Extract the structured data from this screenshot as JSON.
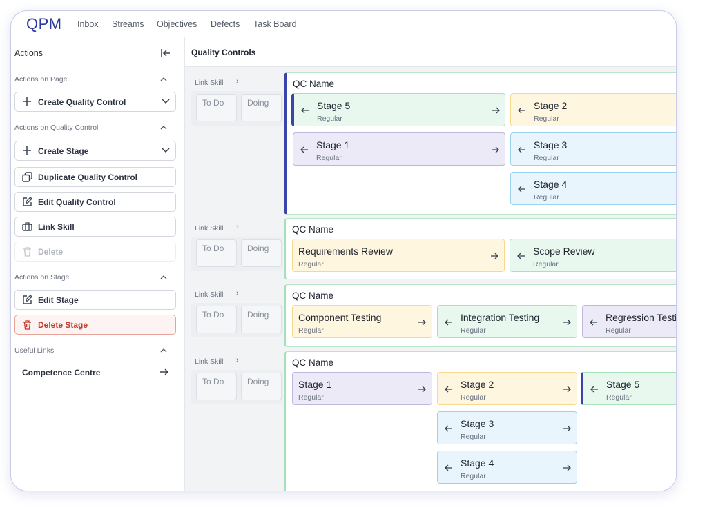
{
  "nav": {
    "logo": "QPM",
    "items": [
      "Inbox",
      "Streams",
      "Objectives",
      "Defects",
      "Task Board"
    ]
  },
  "sidebar": {
    "title": "Actions",
    "sections": [
      {
        "title": "Actions on Page",
        "actions": [
          "Create Quality Control"
        ]
      },
      {
        "title": "Actions on Quality Control",
        "actions": [
          "Create Stage",
          "Duplicate Quality Control",
          "Edit Quality Control",
          "Link Skill",
          "Delete"
        ]
      },
      {
        "title": "Actions on Stage",
        "actions": [
          "Edit Stage",
          "Delete Stage"
        ]
      },
      {
        "title": "Useful Links",
        "actions": [
          "Competence Centre"
        ]
      }
    ]
  },
  "content": {
    "title": "Quality Controls",
    "rows": [
      {
        "link_skill": "Link Skill",
        "columns": [
          "To Do",
          "Doing"
        ],
        "qc_name": "QC Name",
        "selected": true,
        "stages": [
          [
            {
              "name": "Stage 5",
              "type": "Regular",
              "color": "green",
              "selected": true
            },
            {
              "name": "Stage 1",
              "type": "Regular",
              "color": "purple"
            }
          ],
          [
            {
              "name": "Stage 2",
              "type": "Regular",
              "color": "yellow"
            },
            {
              "name": "Stage 3",
              "type": "Regular",
              "color": "blue"
            },
            {
              "name": "Stage 4",
              "type": "Regular",
              "color": "blue"
            }
          ]
        ]
      },
      {
        "link_skill": "Link Skill",
        "columns": [
          "To Do",
          "Doing"
        ],
        "qc_name": "QC Name",
        "stages": [
          [
            {
              "name": "Requirements Review",
              "type": "Regular",
              "color": "yellow"
            }
          ],
          [
            {
              "name": "Scope Review",
              "type": "Regular",
              "color": "green"
            }
          ]
        ]
      },
      {
        "link_skill": "Link Skill",
        "columns": [
          "To Do",
          "Doing"
        ],
        "qc_name": "QC Name",
        "stages": [
          [
            {
              "name": "Component Testing",
              "type": "Regular",
              "color": "yellow"
            }
          ],
          [
            {
              "name": "Integration Testing",
              "type": "Regular",
              "color": "green"
            }
          ],
          [
            {
              "name": "Regression Testing",
              "type": "Regular",
              "color": "purple"
            }
          ]
        ]
      },
      {
        "link_skill": "Link Skill",
        "columns": [
          "To Do",
          "Doing"
        ],
        "qc_name": "QC Name",
        "stages": [
          [
            {
              "name": "Stage 1",
              "type": "Regular",
              "color": "purple"
            }
          ],
          [
            {
              "name": "Stage 2",
              "type": "Regular",
              "color": "yellow"
            },
            {
              "name": "Stage 3",
              "type": "Regular",
              "color": "blue"
            },
            {
              "name": "Stage 4",
              "type": "Regular",
              "color": "blue"
            }
          ],
          [
            {
              "name": "Stage 5",
              "type": "Regular",
              "color": "green",
              "selected": true
            }
          ]
        ]
      }
    ]
  }
}
